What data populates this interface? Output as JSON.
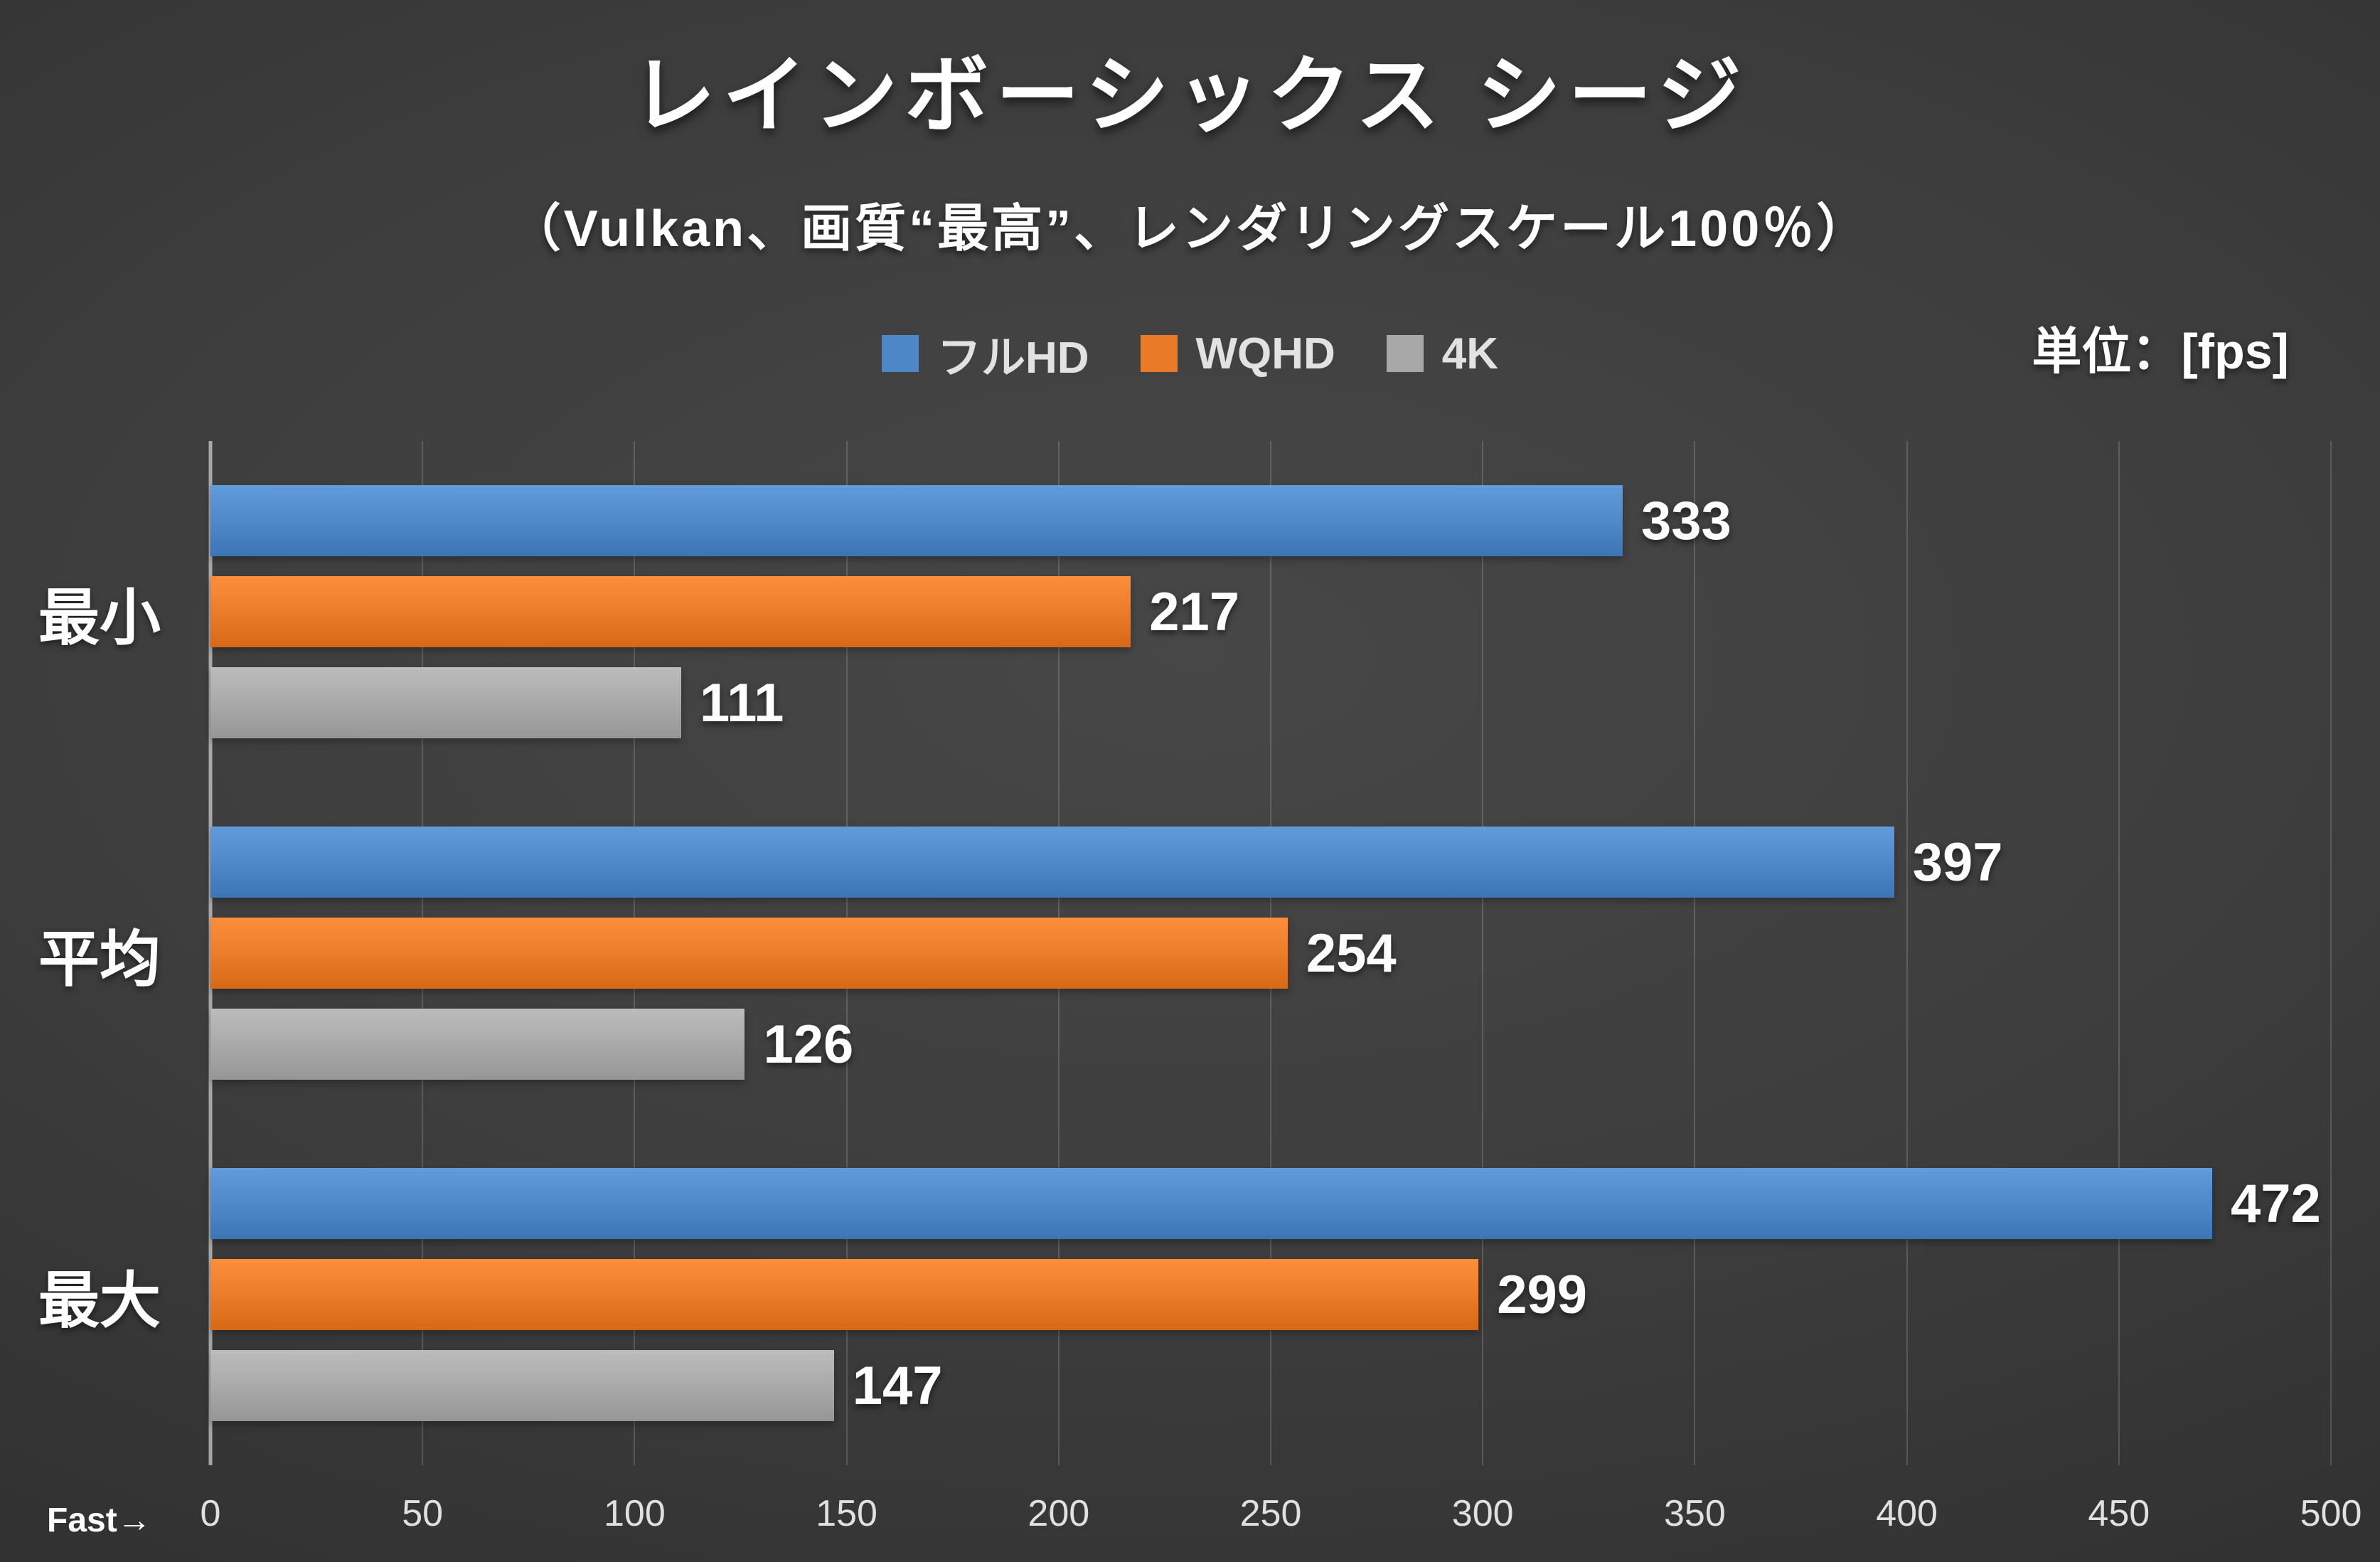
{
  "header": {
    "title": "レインボーシックス シージ",
    "subtitle": "（Vulkan、画質“最高”、レンダリングスケール100％）",
    "unit_label": "単位：[fps]"
  },
  "axis": {
    "fast_label": "Fast→"
  },
  "colors": {
    "fullhd_blue": "#4E87C8",
    "wqhd_orange": "#E87A28",
    "uhd_gray": "#A8A8A8",
    "background_dark": "#3a3a3a",
    "gridline": "rgba(255,255,255,0.16)"
  },
  "chart_data": {
    "type": "bar",
    "orientation": "horizontal",
    "title": "レインボーシックス シージ",
    "subtitle": "（Vulkan、画質“最高”、レンダリングスケール100％）",
    "unit": "fps",
    "categories": [
      "最小",
      "平均",
      "最大"
    ],
    "series": [
      {
        "name": "フルHD",
        "color": "#4E87C8",
        "values": [
          333,
          397,
          472
        ]
      },
      {
        "name": "WQHD",
        "color": "#E87A28",
        "values": [
          217,
          254,
          299
        ]
      },
      {
        "name": "4K",
        "color": "#A8A8A8",
        "values": [
          111,
          126,
          147
        ]
      }
    ],
    "xlim": [
      0,
      500
    ],
    "xtick_step": 50,
    "xtick_labels": [
      "0",
      "50",
      "100",
      "150",
      "200",
      "250",
      "300",
      "350",
      "400",
      "450",
      "500"
    ],
    "grid": true,
    "legend_position": "top",
    "value_labels": true
  }
}
